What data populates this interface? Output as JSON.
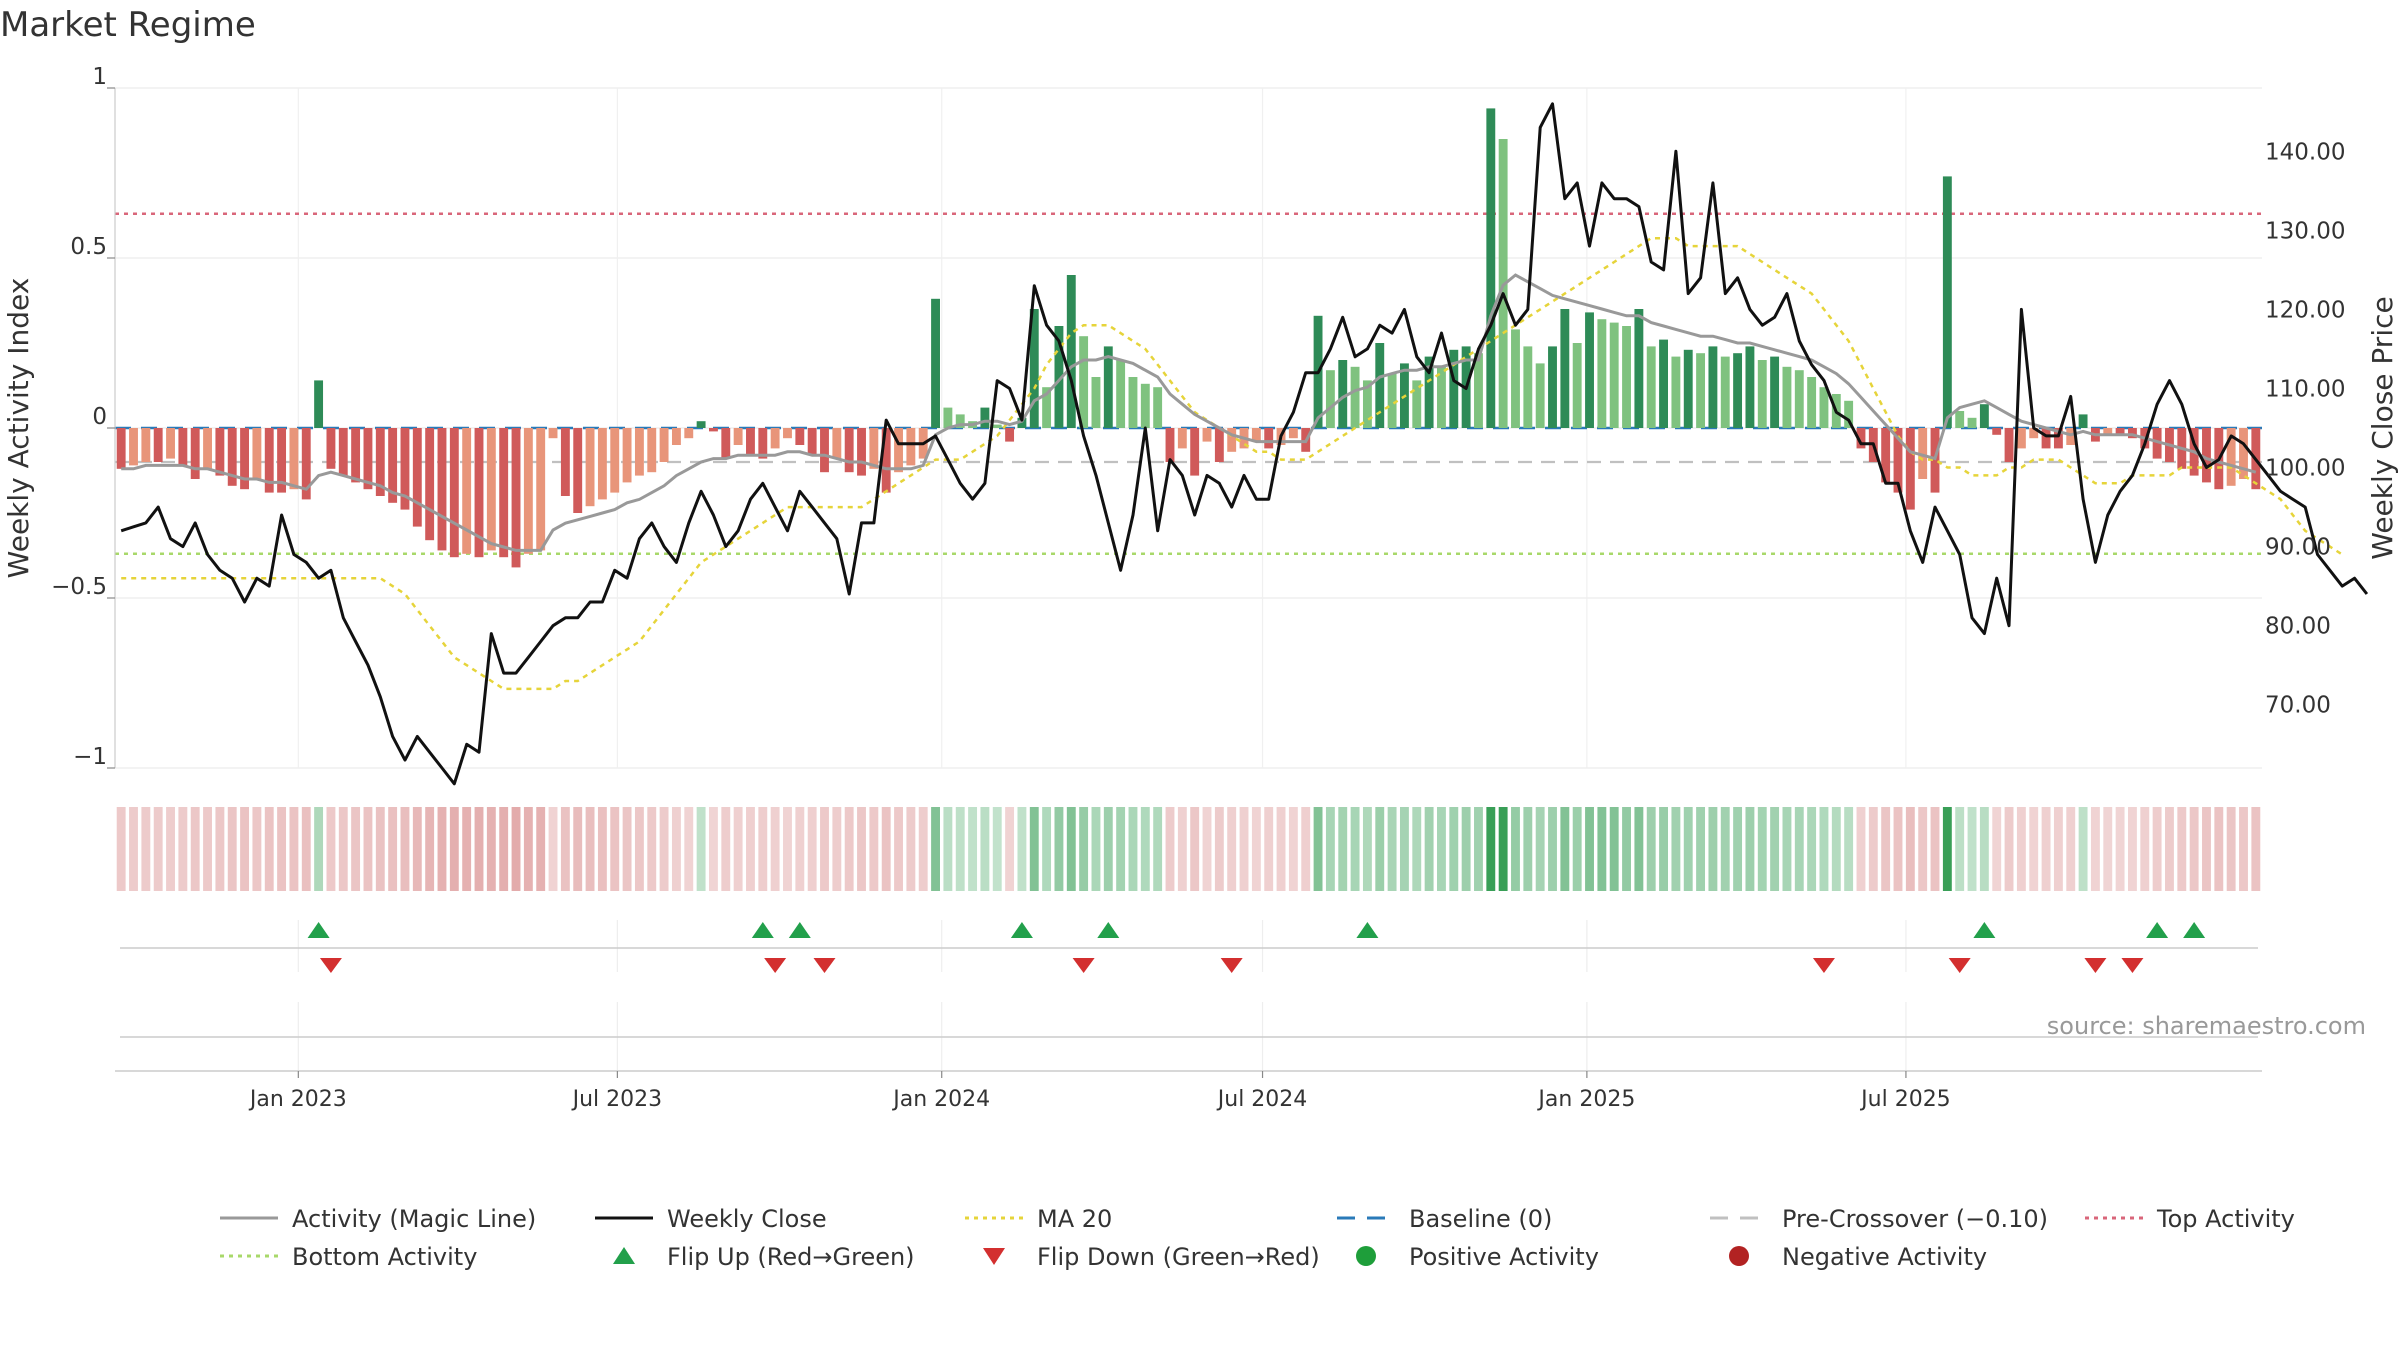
{
  "chart_data": {
    "type": "bar",
    "title": "Market Regime",
    "ylabel_left": "Weekly Activity Index",
    "ylabel_right": "Weekly Close Price",
    "source": "source: sharemaestro.com",
    "ylim_left": [
      -1,
      1
    ],
    "ylim_right": [
      62,
      148
    ],
    "yticks_left": [
      "1",
      "0.5",
      "0",
      "−0.5",
      "−1"
    ],
    "yticks_left_values": [
      1,
      0.5,
      0,
      -0.5,
      -1
    ],
    "yticks_right": [
      "70.00",
      "80.00",
      "90.00",
      "100.00",
      "110.00",
      "120.00",
      "130.00",
      "140.00"
    ],
    "yticks_right_values": [
      70,
      80,
      90,
      100,
      110,
      120,
      130,
      140
    ],
    "x_start": "2022-09-19",
    "x_step_days": 7,
    "x_ticks": [
      {
        "label": "Jan 2023",
        "date": "2023-01-01"
      },
      {
        "label": "Jul 2023",
        "date": "2023-07-01"
      },
      {
        "label": "Jan 2024",
        "date": "2024-01-01"
      },
      {
        "label": "Jul 2024",
        "date": "2024-07-01"
      },
      {
        "label": "Jan 2025",
        "date": "2025-01-01"
      },
      {
        "label": "Jul 2025",
        "date": "2025-07-01"
      }
    ],
    "baseline": 0,
    "pre_crossover": -0.1,
    "top_activity": 0.63,
    "bottom_activity": -0.37,
    "grid": true,
    "legend_position": "bottom",
    "colors": {
      "dark_green": "#2e8b57",
      "light_green": "#7fc27f",
      "dark_red": "#d05a5a",
      "light_red": "#e8957a",
      "magic_line": "#999999",
      "weekly_close": "#111111",
      "ma20": "#e6d43a",
      "baseline": "#2a7ab8",
      "pre_crossover": "#c0c0c0",
      "top_activity": "#d9667a",
      "bottom_activity": "#a8d86a",
      "flip_up": "#22a04b",
      "flip_down": "#d32f2f",
      "positive": "#1e9e3a",
      "negative": "#b22222"
    },
    "activity": [
      -0.12,
      -0.11,
      -0.1,
      -0.1,
      -0.09,
      -0.11,
      -0.15,
      -0.12,
      -0.14,
      -0.17,
      -0.18,
      -0.15,
      -0.19,
      -0.19,
      -0.18,
      -0.21,
      0.14,
      -0.12,
      -0.14,
      -0.16,
      -0.18,
      -0.2,
      -0.22,
      -0.24,
      -0.29,
      -0.33,
      -0.36,
      -0.38,
      -0.37,
      -0.38,
      -0.36,
      -0.38,
      -0.41,
      -0.37,
      -0.36,
      -0.03,
      -0.2,
      -0.25,
      -0.23,
      -0.21,
      -0.19,
      -0.16,
      -0.14,
      -0.13,
      -0.1,
      -0.05,
      -0.03,
      0.02,
      -0.01,
      -0.09,
      -0.05,
      -0.08,
      -0.09,
      -0.06,
      -0.03,
      -0.05,
      -0.08,
      -0.13,
      -0.09,
      -0.13,
      -0.14,
      -0.12,
      -0.19,
      -0.13,
      -0.11,
      -0.09,
      0.38,
      0.06,
      0.04,
      0.02,
      0.06,
      0.01,
      -0.04,
      0.03,
      0.35,
      0.12,
      0.3,
      0.45,
      0.27,
      0.15,
      0.24,
      0.2,
      0.15,
      0.13,
      0.12,
      -0.1,
      -0.06,
      -0.14,
      -0.04,
      -0.1,
      -0.07,
      -0.06,
      -0.04,
      -0.06,
      -0.05,
      -0.03,
      -0.07,
      0.33,
      0.17,
      0.2,
      0.18,
      0.14,
      0.25,
      0.16,
      0.19,
      0.14,
      0.21,
      0.18,
      0.23,
      0.24,
      0.22,
      0.94,
      0.85,
      0.29,
      0.24,
      0.19,
      0.24,
      0.35,
      0.25,
      0.34,
      0.32,
      0.31,
      0.3,
      0.35,
      0.24,
      0.26,
      0.21,
      0.23,
      0.22,
      0.24,
      0.21,
      0.22,
      0.24,
      0.2,
      0.21,
      0.18,
      0.17,
      0.15,
      0.12,
      0.1,
      0.08,
      -0.06,
      -0.1,
      -0.16,
      -0.19,
      -0.24,
      -0.15,
      -0.19,
      0.74,
      0.05,
      0.03,
      0.07,
      -0.02,
      -0.1,
      -0.06,
      -0.03,
      -0.06,
      -0.06,
      -0.05,
      0.04,
      -0.04,
      -0.02,
      -0.02,
      -0.03,
      -0.06,
      -0.09,
      -0.1,
      -0.12,
      -0.14,
      -0.16,
      -0.18,
      -0.17,
      -0.15,
      -0.18
    ],
    "magic_line": [
      -0.12,
      -0.12,
      -0.11,
      -0.11,
      -0.11,
      -0.11,
      -0.12,
      -0.12,
      -0.13,
      -0.14,
      -0.15,
      -0.15,
      -0.16,
      -0.16,
      -0.17,
      -0.18,
      -0.14,
      -0.13,
      -0.14,
      -0.15,
      -0.16,
      -0.17,
      -0.19,
      -0.2,
      -0.22,
      -0.24,
      -0.26,
      -0.28,
      -0.3,
      -0.32,
      -0.34,
      -0.35,
      -0.36,
      -0.36,
      -0.36,
      -0.3,
      -0.28,
      -0.27,
      -0.26,
      -0.25,
      -0.24,
      -0.22,
      -0.21,
      -0.19,
      -0.17,
      -0.14,
      -0.12,
      -0.1,
      -0.09,
      -0.09,
      -0.08,
      -0.08,
      -0.08,
      -0.08,
      -0.07,
      -0.07,
      -0.08,
      -0.08,
      -0.09,
      -0.1,
      -0.1,
      -0.11,
      -0.12,
      -0.12,
      -0.12,
      -0.11,
      -0.02,
      0.0,
      0.01,
      0.01,
      0.02,
      0.02,
      0.01,
      0.02,
      0.08,
      0.1,
      0.14,
      0.18,
      0.2,
      0.2,
      0.21,
      0.2,
      0.19,
      0.17,
      0.15,
      0.1,
      0.07,
      0.04,
      0.02,
      0.0,
      -0.02,
      -0.03,
      -0.04,
      -0.04,
      -0.04,
      -0.04,
      -0.04,
      0.03,
      0.06,
      0.09,
      0.11,
      0.12,
      0.15,
      0.16,
      0.17,
      0.17,
      0.18,
      0.18,
      0.19,
      0.2,
      0.2,
      0.33,
      0.42,
      0.45,
      0.43,
      0.41,
      0.39,
      0.38,
      0.37,
      0.36,
      0.35,
      0.34,
      0.33,
      0.33,
      0.31,
      0.3,
      0.29,
      0.28,
      0.27,
      0.27,
      0.26,
      0.25,
      0.25,
      0.24,
      0.23,
      0.22,
      0.21,
      0.2,
      0.18,
      0.16,
      0.13,
      0.09,
      0.05,
      0.01,
      -0.03,
      -0.07,
      -0.08,
      -0.09,
      0.03,
      0.06,
      0.07,
      0.08,
      0.06,
      0.04,
      0.02,
      0.01,
      0.0,
      -0.01,
      -0.02,
      -0.01,
      -0.02,
      -0.02,
      -0.02,
      -0.02,
      -0.03,
      -0.04,
      -0.05,
      -0.06,
      -0.07,
      -0.09,
      -0.1,
      -0.11,
      -0.12,
      -0.13
    ],
    "weekly_close": [
      92,
      92.5,
      93,
      95,
      91,
      90,
      93,
      89,
      87,
      86,
      83,
      86,
      85,
      94,
      89,
      88,
      86,
      87,
      81,
      78,
      75,
      71,
      66,
      63,
      66,
      64,
      62,
      60,
      65,
      64,
      79,
      74,
      74,
      76,
      78,
      80,
      81,
      81,
      83,
      83,
      87,
      86,
      91,
      93,
      90,
      88,
      93,
      97,
      94,
      90,
      92,
      96,
      98,
      95,
      92,
      97,
      95,
      93,
      91,
      84,
      93,
      93,
      106,
      103,
      103,
      103,
      104,
      101,
      98,
      96,
      98,
      111,
      110,
      106,
      123,
      118,
      116,
      111,
      104,
      99,
      93,
      87,
      94,
      105,
      92,
      101,
      99,
      94,
      99,
      98,
      95,
      99,
      96,
      96,
      104,
      107,
      112,
      112,
      115,
      119,
      114,
      115,
      118,
      117,
      120,
      114,
      112,
      117,
      111,
      110,
      115,
      118,
      122,
      118,
      120,
      143,
      146,
      134,
      136,
      128,
      136,
      134,
      134,
      133,
      126,
      125,
      140,
      122,
      124,
      136,
      122,
      124,
      120,
      118,
      119,
      122,
      116,
      113,
      111,
      107,
      106,
      103,
      103,
      98,
      98,
      92,
      88,
      95,
      92,
      89,
      81,
      79,
      86,
      80,
      120,
      105,
      104,
      104,
      109,
      96,
      88,
      94,
      97,
      99,
      103,
      108,
      111,
      108,
      103,
      100,
      101,
      104,
      103,
      101,
      99,
      97,
      96,
      95,
      89,
      87,
      85,
      86,
      84
    ],
    "ma20": [
      86,
      86,
      86,
      86,
      86,
      86,
      86,
      86,
      86,
      86,
      86,
      86,
      86,
      86,
      86,
      86,
      86,
      86,
      86,
      86,
      86,
      86,
      85,
      84,
      82,
      80,
      78,
      76,
      75,
      74,
      73,
      72,
      72,
      72,
      72,
      72,
      73,
      73,
      74,
      75,
      76,
      77,
      78,
      80,
      82,
      84,
      86,
      88,
      89,
      90,
      91,
      92,
      93,
      94,
      95,
      95,
      95,
      95,
      95,
      95,
      95,
      96,
      97,
      98,
      99,
      100,
      101,
      101,
      101,
      102,
      103,
      104,
      106,
      108,
      110,
      113,
      115,
      117,
      118,
      118,
      118,
      117,
      116,
      115,
      113,
      111,
      109,
      107,
      106,
      105,
      104,
      103,
      102,
      102,
      101,
      101,
      101,
      102,
      103,
      104,
      105,
      106,
      107,
      108,
      109,
      110,
      111,
      112,
      113,
      114,
      115,
      116,
      117,
      118,
      119,
      120,
      121,
      122,
      123,
      124,
      125,
      126,
      127,
      128,
      129,
      129,
      129,
      128,
      128,
      128,
      128,
      128,
      127,
      126,
      125,
      124,
      123,
      122,
      120,
      118,
      116,
      113,
      110,
      107,
      104,
      102,
      101,
      101,
      100,
      100,
      99,
      99,
      99,
      100,
      100,
      101,
      101,
      101,
      100,
      99,
      98,
      98,
      98,
      99,
      99,
      99,
      99,
      100,
      100,
      100,
      100,
      100,
      99,
      98,
      97,
      96,
      94,
      92,
      91,
      90,
      89
    ],
    "flip_up_weeks": [
      16,
      52,
      55,
      73,
      80,
      101,
      151,
      165,
      168
    ],
    "flip_down_weeks": [
      17,
      53,
      57,
      78,
      90,
      138,
      149,
      160,
      163
    ],
    "legend": [
      {
        "label": "Activity (Magic Line)",
        "kind": "line-solid",
        "color": "#999999"
      },
      {
        "label": "Weekly Close",
        "kind": "line-solid",
        "color": "#111111"
      },
      {
        "label": "MA 20",
        "kind": "line-dotted",
        "color": "#e6d43a"
      },
      {
        "label": "Baseline (0)",
        "kind": "line-dashed",
        "color": "#2a7ab8"
      },
      {
        "label": "Pre-Crossover (−0.10)",
        "kind": "line-dashed",
        "color": "#c0c0c0"
      },
      {
        "label": "Top Activity",
        "kind": "line-dotted",
        "color": "#d9667a"
      },
      {
        "label": "Bottom Activity",
        "kind": "line-dotted",
        "color": "#a8d86a"
      },
      {
        "label": "Flip Up (Red→Green)",
        "kind": "triangle-up",
        "color": "#22a04b"
      },
      {
        "label": "Flip Down (Green→Red)",
        "kind": "triangle-down",
        "color": "#d32f2f"
      },
      {
        "label": "Positive Activity",
        "kind": "circle",
        "color": "#1e9e3a"
      },
      {
        "label": "Negative Activity",
        "kind": "circle",
        "color": "#b22222"
      }
    ]
  }
}
